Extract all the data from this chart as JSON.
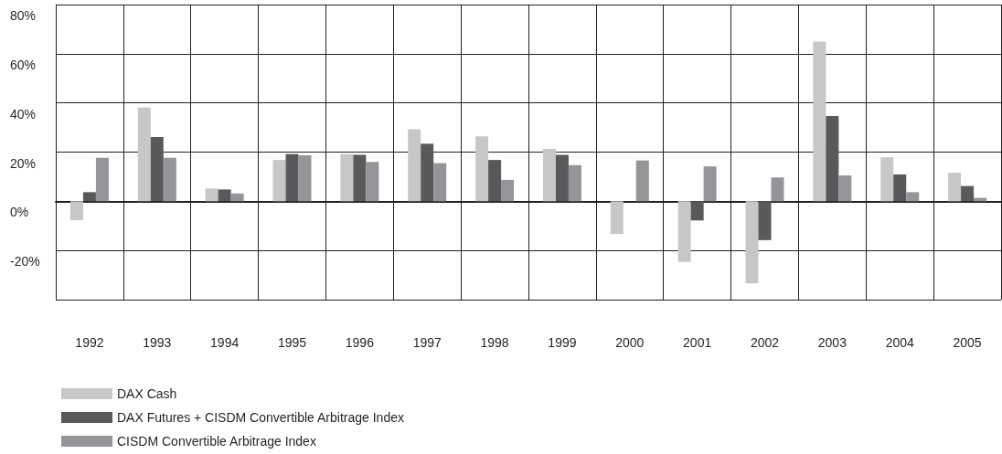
{
  "chart_data": {
    "type": "bar",
    "categories": [
      "1992",
      "1993",
      "1994",
      "1995",
      "1996",
      "1997",
      "1998",
      "1999",
      "2000",
      "2001",
      "2002",
      "2003",
      "2004",
      "2005"
    ],
    "series": [
      {
        "name": "DAX Cash",
        "color": "#c6c7c9",
        "values": [
          -7.7,
          38.1,
          5.2,
          16.8,
          19.2,
          29.3,
          26.4,
          21.3,
          -13.3,
          -24.7,
          -33.4,
          65.0,
          17.9,
          11.6
        ]
      },
      {
        "name": "DAX Futures + CISDM Convertible Arbitrage Index",
        "color": "#58595b",
        "values": [
          3.7,
          26.1,
          4.8,
          19.2,
          18.9,
          23.4,
          16.8,
          18.9,
          null,
          -7.8,
          -15.8,
          34.7,
          10.9,
          6.2
        ]
      },
      {
        "name": "CISDM Convertible Arbitrage Index",
        "color": "#939598",
        "values": [
          17.7,
          17.7,
          3.2,
          18.7,
          16.0,
          15.5,
          8.7,
          14.7,
          16.6,
          14.2,
          9.7,
          10.5,
          3.7,
          1.4
        ]
      }
    ],
    "ylim": [
      -40,
      80
    ],
    "yticks": [
      {
        "value": -40,
        "label": null
      },
      {
        "value": -20,
        "label": "-20%"
      },
      {
        "value": 0,
        "label": "0%"
      },
      {
        "value": 20,
        "label": "20%"
      },
      {
        "value": 40,
        "label": "40%"
      },
      {
        "value": 60,
        "label": "60%"
      },
      {
        "value": 80,
        "label": "80%"
      }
    ],
    "grid": true,
    "legend": "bottom left"
  }
}
